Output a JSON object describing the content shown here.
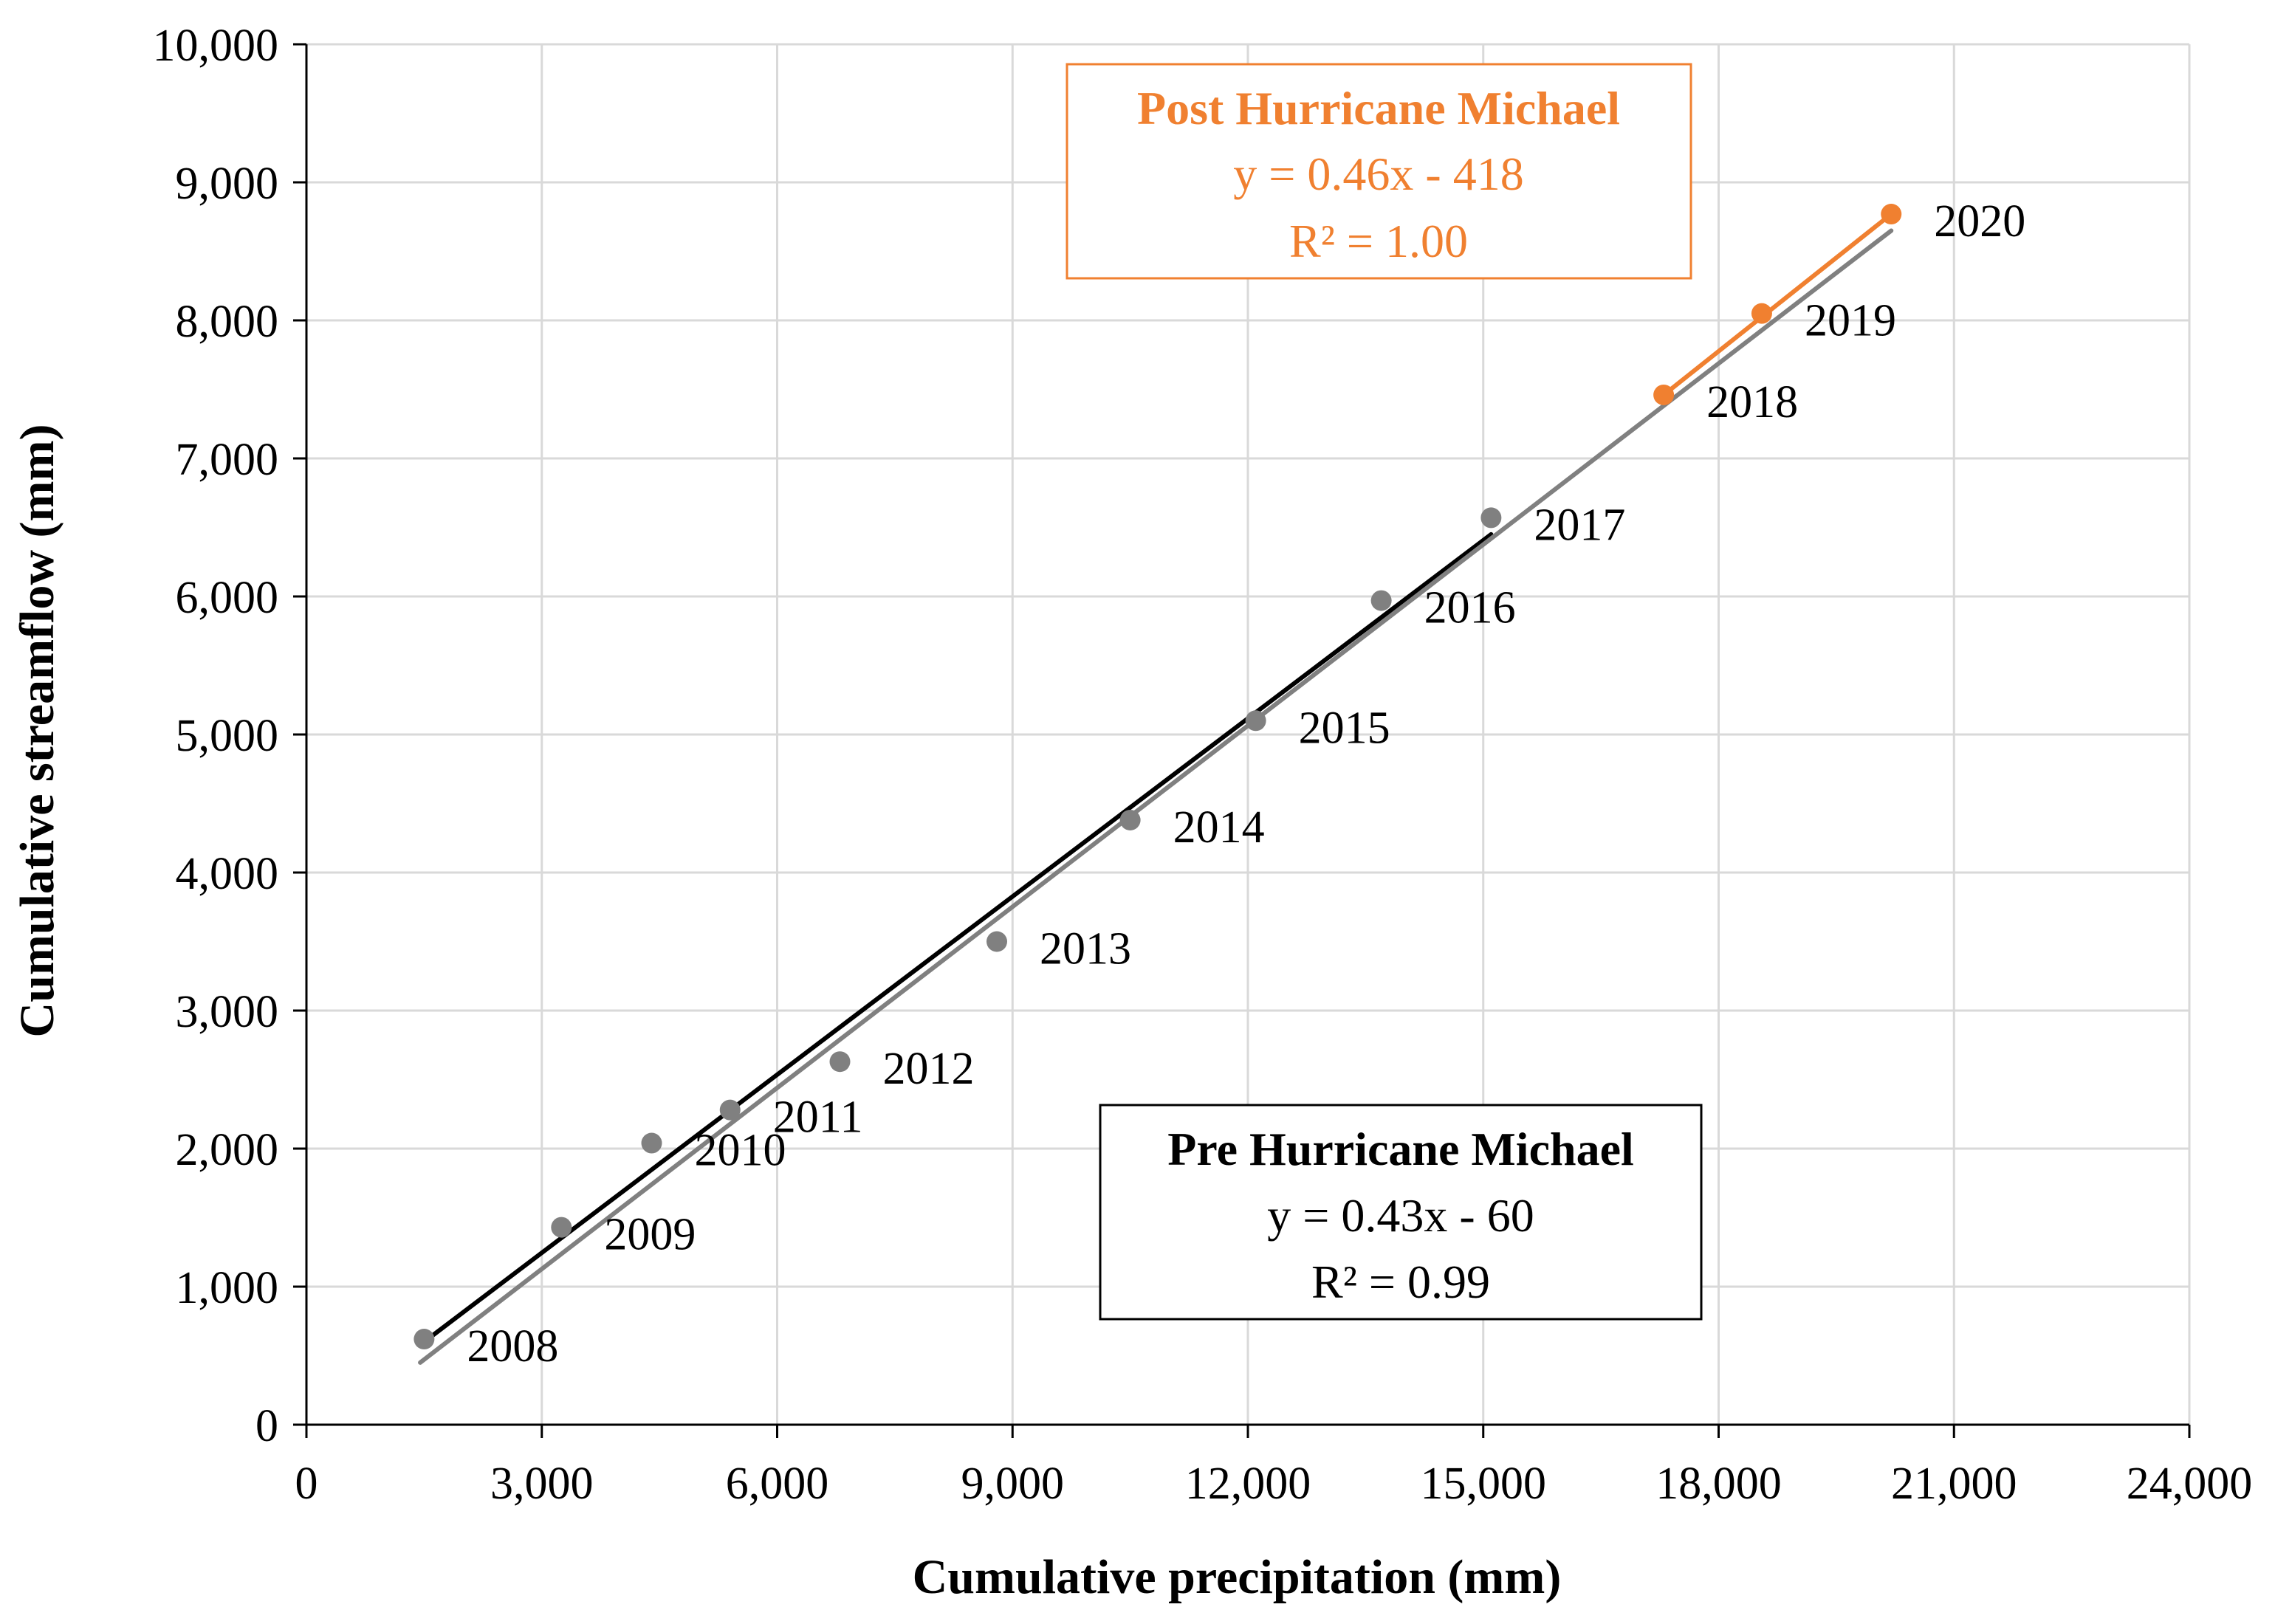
{
  "chart_data": {
    "type": "scatter",
    "xlabel": "Cumulative precipitation (mm)",
    "ylabel": "Cumulative streamflow (mm)",
    "xlim": [
      0,
      24000
    ],
    "ylim": [
      0,
      10000
    ],
    "x_ticks": [
      "0",
      "3,000",
      "6,000",
      "9,000",
      "12,000",
      "15,000",
      "18,000",
      "21,000",
      "24,000"
    ],
    "y_ticks": [
      "0",
      "1,000",
      "2,000",
      "3,000",
      "4,000",
      "5,000",
      "6,000",
      "7,000",
      "8,000",
      "9,000",
      "10,000"
    ],
    "grid": true,
    "series": [
      {
        "color": "#808080",
        "points": [
          {
            "label": "2008",
            "x": 1500,
            "y": 620
          },
          {
            "label": "2009",
            "x": 3250,
            "y": 1430
          },
          {
            "label": "2010",
            "x": 4400,
            "y": 2040
          },
          {
            "label": "2011",
            "x": 5400,
            "y": 2280
          },
          {
            "label": "2012",
            "x": 6800,
            "y": 2630
          },
          {
            "label": "2013",
            "x": 8800,
            "y": 3500
          },
          {
            "label": "2014",
            "x": 10500,
            "y": 4380
          },
          {
            "label": "2015",
            "x": 12100,
            "y": 5100
          },
          {
            "label": "2016",
            "x": 13700,
            "y": 5970
          },
          {
            "label": "2017",
            "x": 15100,
            "y": 6570
          }
        ]
      },
      {
        "color": "#f08030",
        "points": [
          {
            "label": "2018",
            "x": 17300,
            "y": 7460
          },
          {
            "label": "2019",
            "x": 18550,
            "y": 8050
          },
          {
            "label": "2020",
            "x": 20200,
            "y": 8770
          }
        ]
      }
    ],
    "lines": [
      {
        "color": "#000000",
        "x": [
          1500,
          15100
        ],
        "y": [
          600,
          6450
        ]
      },
      {
        "color": "#808080",
        "x": [
          1450,
          20200
        ],
        "y": [
          450,
          8650
        ]
      },
      {
        "color": "#f08030",
        "x": [
          17300,
          20200
        ],
        "y": [
          7460,
          8770
        ]
      }
    ],
    "annotations": {
      "post": {
        "title": "Post Hurricane Michael",
        "equation": "y = 0.46x - 418",
        "r2": "R² = 1.00",
        "color": "#f08030"
      },
      "pre": {
        "title": "Pre Hurricane Michael",
        "equation": "y = 0.43x - 60",
        "r2": "R² = 0.99",
        "color": "#000000"
      }
    }
  }
}
